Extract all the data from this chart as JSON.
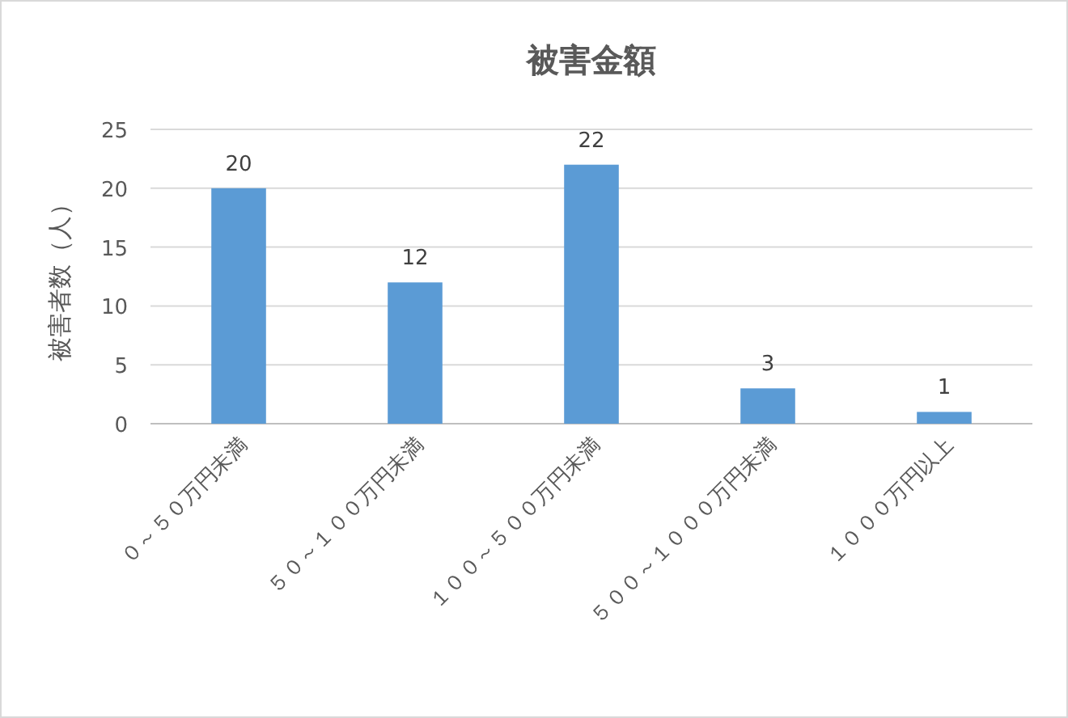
{
  "chart_data": {
    "type": "bar",
    "title": "被害金額",
    "ylabel": "被害者数（人）",
    "categories": [
      "０～５０万円未満",
      "５０～１００万円未満",
      "１００～５００万円未満",
      "５００～１０００万円未満",
      "１０００万円以上"
    ],
    "values": [
      20,
      12,
      22,
      3,
      1
    ],
    "color": "#5b9bd5",
    "ylim": [
      0,
      25
    ],
    "yticks": [
      0,
      5,
      10,
      15,
      20,
      25
    ],
    "grid": "y",
    "data_labels": true
  }
}
